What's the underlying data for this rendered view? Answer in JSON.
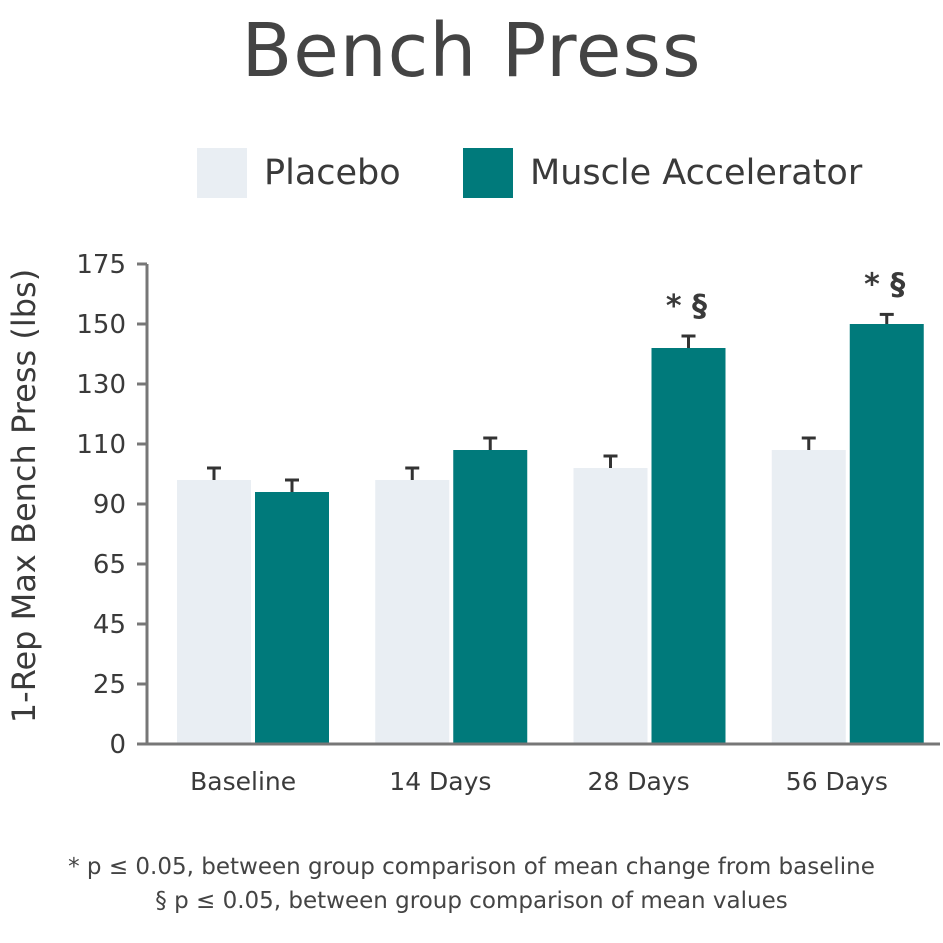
{
  "title": "Bench Press",
  "legend": [
    {
      "label": "Placebo",
      "color": "#e9eef3"
    },
    {
      "label": "Muscle Accelerator",
      "color": "#007a7b"
    }
  ],
  "chart_data": {
    "type": "bar",
    "title": "Bench Press",
    "ylabel": "1-Rep Max Bench Press (lbs)",
    "xlabel": "",
    "categories": [
      "Baseline",
      "14 Days",
      "28 Days",
      "56 Days"
    ],
    "y_ticks": [
      "0",
      "25",
      "45",
      "65",
      "90",
      "110",
      "130",
      "150",
      "175"
    ],
    "series": [
      {
        "name": "Placebo",
        "color": "#e9eef3",
        "values": [
          98,
          98,
          102,
          108
        ],
        "error": [
          4,
          4,
          4,
          4
        ]
      },
      {
        "name": "Muscle Accelerator",
        "color": "#007a7b",
        "values": [
          94,
          108,
          142,
          150
        ],
        "error": [
          4,
          4,
          4,
          4
        ]
      }
    ],
    "annotations": [
      {
        "category": "28 Days",
        "text": "* §"
      },
      {
        "category": "56 Days",
        "text": "* §"
      }
    ],
    "grid": false,
    "legend_position": "top"
  },
  "footnotes": [
    "* p ≤ 0.05, between group comparison of mean change from baseline",
    "§ p ≤ 0.05, between group comparison of mean values"
  ]
}
